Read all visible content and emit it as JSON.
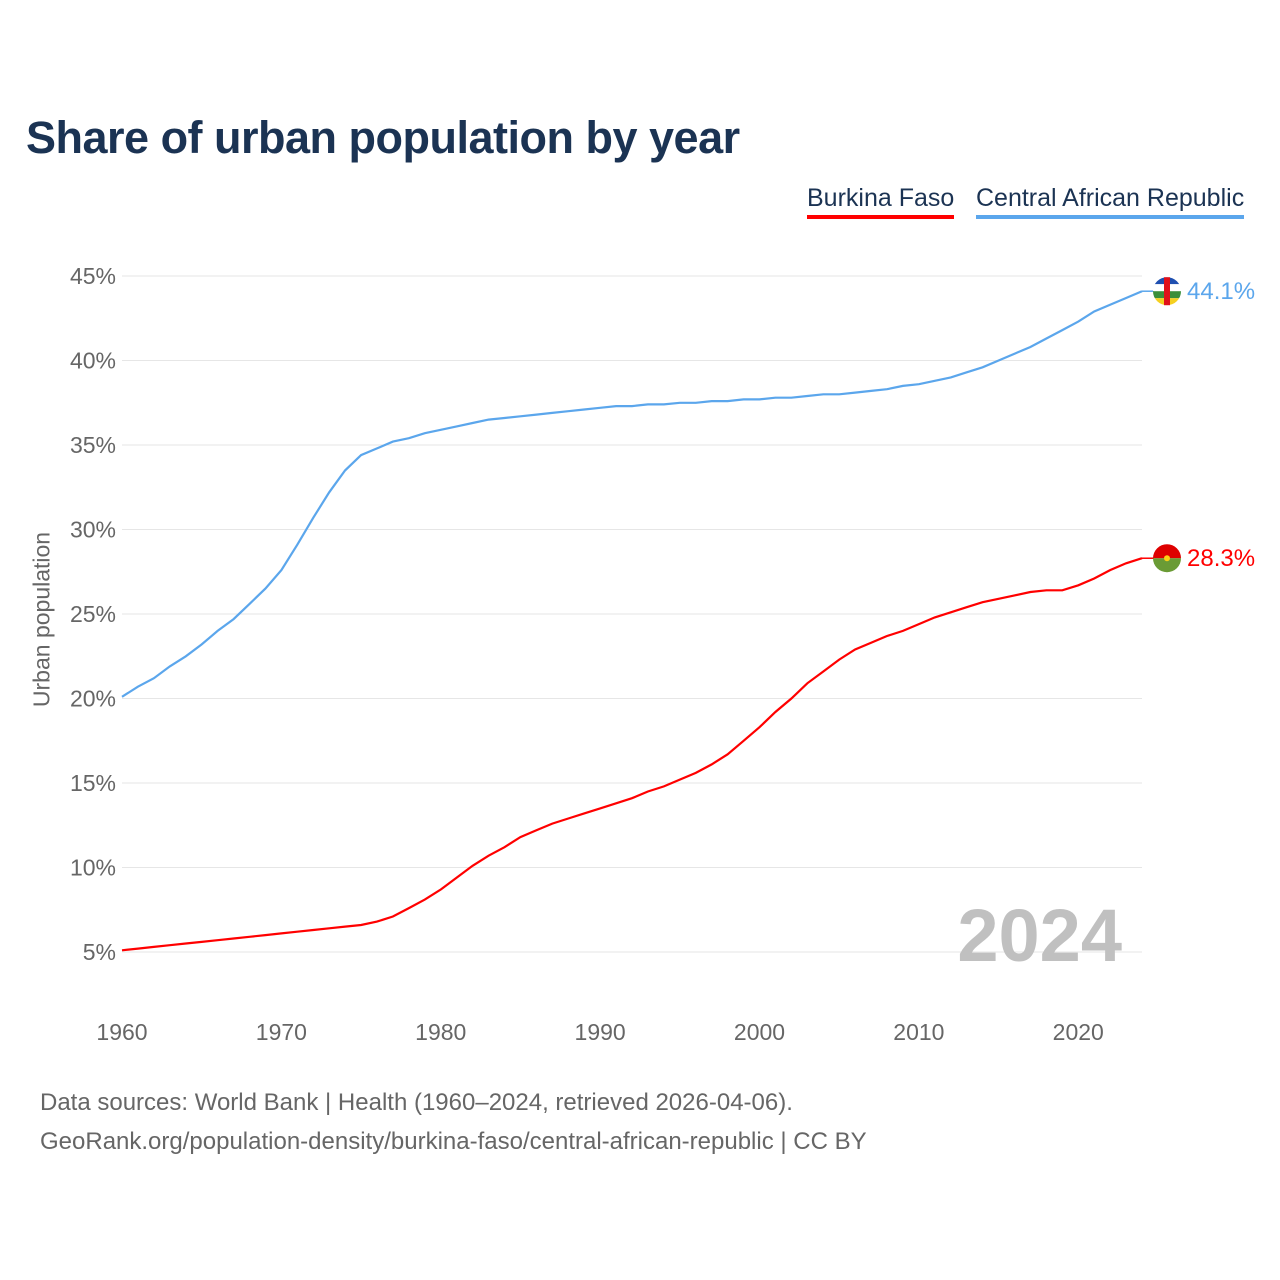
{
  "chart_data": {
    "type": "line",
    "title": "Share of urban population by year",
    "xlabel": "",
    "ylabel": "Urban population",
    "xlim": [
      1960,
      2024
    ],
    "ylim": [
      5,
      45
    ],
    "x_ticks": [
      "1960",
      "1970",
      "1980",
      "1990",
      "2000",
      "2010",
      "2020"
    ],
    "y_ticks": [
      "5%",
      "10%",
      "15%",
      "20%",
      "25%",
      "30%",
      "35%",
      "40%",
      "45%"
    ],
    "y_tick_values": [
      5,
      10,
      15,
      20,
      25,
      30,
      35,
      40,
      45
    ],
    "grid": true,
    "legend_position": "top-right",
    "year_label": "2024",
    "x_start": 1960,
    "series": [
      {
        "name": "Burkina Faso",
        "color": "#ff0000",
        "end_label": "28.3%",
        "values": [
          5.1,
          5.2,
          5.3,
          5.4,
          5.5,
          5.6,
          5.7,
          5.8,
          5.9,
          6.0,
          6.1,
          6.2,
          6.3,
          6.4,
          6.5,
          6.6,
          6.8,
          7.1,
          7.6,
          8.1,
          8.7,
          9.4,
          10.1,
          10.7,
          11.2,
          11.8,
          12.2,
          12.6,
          12.9,
          13.2,
          13.5,
          13.8,
          14.1,
          14.5,
          14.8,
          15.2,
          15.6,
          16.1,
          16.7,
          17.5,
          18.3,
          19.2,
          20.0,
          20.9,
          21.6,
          22.3,
          22.9,
          23.3,
          23.7,
          24.0,
          24.4,
          24.8,
          25.1,
          25.4,
          25.7,
          25.9,
          26.1,
          26.3,
          26.4,
          26.4,
          26.7,
          27.1,
          27.6,
          28.0,
          28.3
        ]
      },
      {
        "name": "Central African Republic",
        "color": "#5ba6ec",
        "end_label": "44.1%",
        "values": [
          20.1,
          20.7,
          21.2,
          21.9,
          22.5,
          23.2,
          24.0,
          24.7,
          25.6,
          26.5,
          27.6,
          29.1,
          30.7,
          32.2,
          33.5,
          34.4,
          34.8,
          35.2,
          35.4,
          35.7,
          35.9,
          36.1,
          36.3,
          36.5,
          36.6,
          36.7,
          36.8,
          36.9,
          37.0,
          37.1,
          37.2,
          37.3,
          37.3,
          37.4,
          37.4,
          37.5,
          37.5,
          37.6,
          37.6,
          37.7,
          37.7,
          37.8,
          37.8,
          37.9,
          38.0,
          38.0,
          38.1,
          38.2,
          38.3,
          38.5,
          38.6,
          38.8,
          39.0,
          39.3,
          39.6,
          40.0,
          40.4,
          40.8,
          41.3,
          41.8,
          42.3,
          42.9,
          43.3,
          43.7,
          44.1
        ]
      }
    ]
  },
  "footer": {
    "line1": "Data sources: World Bank | Health (1960–2024, retrieved 2026-04-06).",
    "line2": "GeoRank.org/population-density/burkina-faso/central-african-republic | CC BY"
  }
}
